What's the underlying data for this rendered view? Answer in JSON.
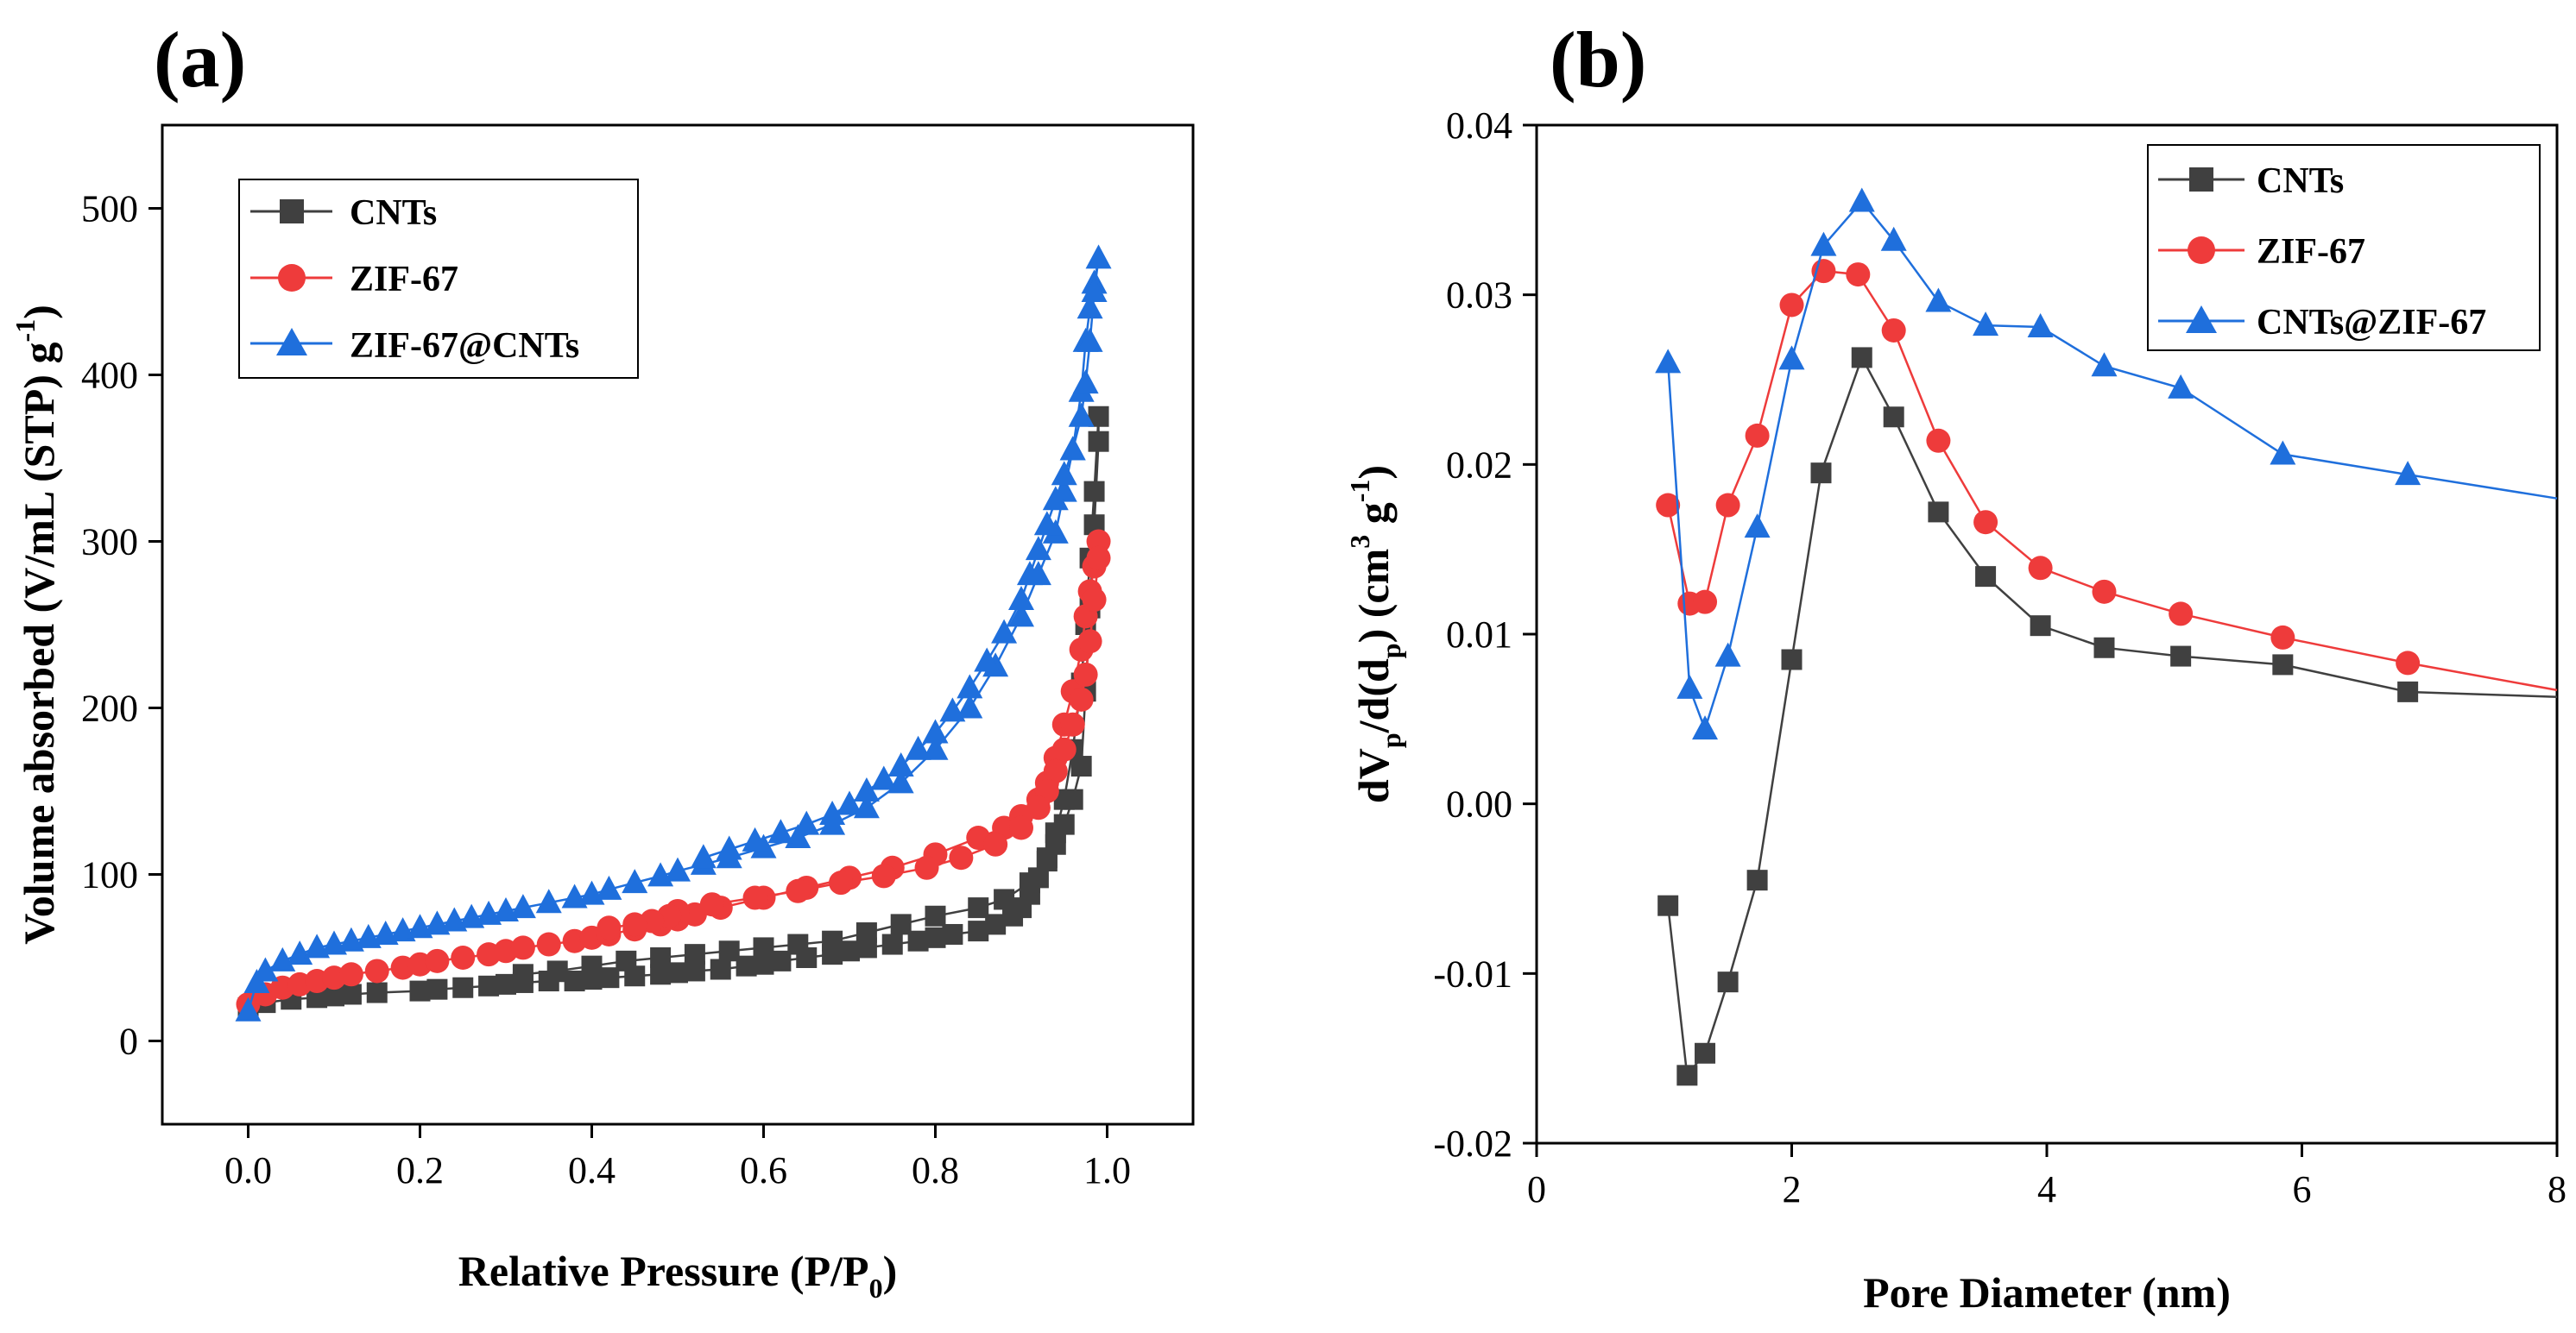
{
  "colors": {
    "cnts": "#404040",
    "zif67": "#ee3b3b",
    "blue": "#1f6fdc",
    "axis": "#000000"
  },
  "chart_data": [
    {
      "id": "a",
      "panel_label": "(a)",
      "type": "line",
      "title": "",
      "xlabel": "Relative Pressure (P/P0)",
      "xlabel_main": "Relative Pressure (P/P",
      "xlabel_sub": "0",
      "xlabel_end": ")",
      "ylabel": "Volume absorbed (V/mL (STP) g-1)",
      "ylabel_main": "Volume absorbed (V/mL (STP) g",
      "ylabel_sup": "-1",
      "ylabel_end": ")",
      "xlim": [
        -0.1,
        1.1
      ],
      "ylim": [
        -50,
        550
      ],
      "xticks": [
        0.0,
        0.2,
        0.4,
        0.6,
        0.8,
        1.0
      ],
      "xtick_labels": [
        "0.0",
        "0.2",
        "0.4",
        "0.6",
        "0.8",
        "1.0"
      ],
      "yticks": [
        0,
        100,
        200,
        300,
        400,
        500
      ],
      "ytick_labels": [
        "0",
        "100",
        "200",
        "300",
        "400",
        "500"
      ],
      "legend_position": "top-left",
      "series": [
        {
          "name": "CNTs",
          "color_key": "cnts",
          "marker": "square",
          "x": [
            0.0,
            0.02,
            0.05,
            0.08,
            0.1,
            0.12,
            0.15,
            0.2,
            0.22,
            0.25,
            0.28,
            0.3,
            0.32,
            0.35,
            0.38,
            0.4,
            0.42,
            0.45,
            0.48,
            0.5,
            0.52,
            0.55,
            0.58,
            0.6,
            0.62,
            0.65,
            0.68,
            0.7,
            0.72,
            0.75,
            0.78,
            0.8,
            0.82,
            0.85,
            0.87,
            0.89,
            0.9,
            0.91,
            0.92,
            0.93,
            0.94,
            0.95,
            0.96,
            0.97,
            0.975,
            0.98,
            0.985,
            0.99,
            0.99,
            0.985,
            0.98,
            0.975,
            0.97,
            0.96,
            0.95,
            0.94,
            0.93,
            0.91,
            0.88,
            0.85,
            0.8,
            0.76,
            0.72,
            0.68,
            0.64,
            0.6,
            0.56,
            0.52,
            0.48,
            0.44,
            0.4,
            0.36,
            0.32
          ],
          "y": [
            20,
            23,
            25,
            26,
            27,
            28,
            29,
            30,
            31,
            32,
            33,
            34,
            35,
            36,
            36,
            37,
            38,
            39,
            40,
            41,
            42,
            43,
            45,
            46,
            48,
            50,
            52,
            54,
            56,
            58,
            60,
            62,
            64,
            66,
            70,
            75,
            80,
            88,
            98,
            110,
            125,
            145,
            175,
            215,
            250,
            290,
            330,
            375,
            360,
            310,
            260,
            210,
            165,
            145,
            130,
            118,
            108,
            95,
            85,
            80,
            75,
            70,
            65,
            60,
            58,
            56,
            54,
            52,
            50,
            48,
            45,
            42,
            40
          ]
        },
        {
          "name": "ZIF-67",
          "color_key": "zif67",
          "marker": "circle",
          "x": [
            0.0,
            0.02,
            0.04,
            0.06,
            0.08,
            0.1,
            0.12,
            0.15,
            0.18,
            0.2,
            0.22,
            0.25,
            0.28,
            0.3,
            0.32,
            0.35,
            0.38,
            0.4,
            0.42,
            0.45,
            0.48,
            0.5,
            0.52,
            0.55,
            0.6,
            0.65,
            0.7,
            0.75,
            0.8,
            0.85,
            0.88,
            0.9,
            0.92,
            0.93,
            0.94,
            0.95,
            0.96,
            0.97,
            0.975,
            0.98,
            0.985,
            0.99,
            0.99,
            0.985,
            0.98,
            0.975,
            0.97,
            0.96,
            0.95,
            0.94,
            0.93,
            0.92,
            0.9,
            0.87,
            0.83,
            0.79,
            0.74,
            0.69,
            0.64,
            0.59,
            0.54,
            0.5,
            0.49,
            0.47,
            0.45,
            0.42
          ],
          "y": [
            22,
            28,
            32,
            34,
            36,
            38,
            40,
            42,
            44,
            46,
            48,
            50,
            52,
            54,
            56,
            58,
            60,
            62,
            64,
            67,
            70,
            73,
            76,
            80,
            86,
            92,
            98,
            104,
            112,
            122,
            128,
            135,
            145,
            155,
            170,
            190,
            210,
            235,
            255,
            270,
            285,
            300,
            290,
            265,
            240,
            220,
            205,
            190,
            175,
            162,
            150,
            140,
            128,
            118,
            110,
            104,
            99,
            95,
            90,
            86,
            82,
            78,
            75,
            72,
            70,
            68
          ]
        },
        {
          "name": "ZIF-67@CNTs",
          "color_key": "blue",
          "marker": "triangle",
          "x": [
            0.0,
            0.01,
            0.02,
            0.04,
            0.06,
            0.08,
            0.1,
            0.12,
            0.14,
            0.16,
            0.18,
            0.2,
            0.22,
            0.24,
            0.26,
            0.28,
            0.3,
            0.32,
            0.35,
            0.38,
            0.4,
            0.42,
            0.45,
            0.48,
            0.5,
            0.53,
            0.56,
            0.6,
            0.64,
            0.68,
            0.72,
            0.76,
            0.8,
            0.84,
            0.87,
            0.9,
            0.92,
            0.94,
            0.95,
            0.96,
            0.97,
            0.975,
            0.98,
            0.985,
            0.99,
            0.985,
            0.98,
            0.975,
            0.97,
            0.96,
            0.95,
            0.94,
            0.93,
            0.92,
            0.91,
            0.9,
            0.88,
            0.86,
            0.84,
            0.82,
            0.8,
            0.78,
            0.76,
            0.74,
            0.72,
            0.7,
            0.68,
            0.65,
            0.62,
            0.59,
            0.56,
            0.53
          ],
          "y": [
            18,
            35,
            42,
            48,
            52,
            56,
            58,
            60,
            62,
            64,
            66,
            68,
            70,
            72,
            74,
            76,
            78,
            80,
            83,
            86,
            88,
            91,
            95,
            99,
            102,
            106,
            110,
            116,
            122,
            130,
            140,
            155,
            175,
            200,
            225,
            255,
            280,
            305,
            330,
            355,
            390,
            420,
            440,
            455,
            470,
            450,
            420,
            395,
            375,
            355,
            340,
            325,
            310,
            295,
            280,
            265,
            245,
            228,
            212,
            198,
            185,
            175,
            165,
            157,
            150,
            142,
            136,
            130,
            125,
            120,
            115,
            110
          ]
        }
      ]
    },
    {
      "id": "b",
      "panel_label": "(b)",
      "type": "line",
      "title": "",
      "xlabel": "Pore Diameter (nm)",
      "ylabel": "dVp/d(dp) (cm3 g-1)",
      "ylabel_parts": {
        "a": "dV",
        "b": "p",
        "c": "/d(d",
        "d": "p",
        "e": ") (cm",
        "f": "3",
        "g": " g",
        "h": "-1",
        "i": ")"
      },
      "xlim": [
        0,
        8
      ],
      "ylim": [
        -0.02,
        0.04
      ],
      "xticks": [
        0,
        2,
        4,
        6,
        8
      ],
      "xtick_labels": [
        "0",
        "2",
        "4",
        "6",
        "8"
      ],
      "yticks": [
        -0.02,
        -0.01,
        0.0,
        0.01,
        0.02,
        0.03,
        0.04
      ],
      "ytick_labels": [
        "-0.02",
        "-0.01",
        "0.00",
        "0.01",
        "0.02",
        "0.03",
        "0.04"
      ],
      "legend_position": "top-right",
      "series": [
        {
          "name": "CNTs",
          "color_key": "cnts",
          "marker": "square",
          "x": [
            1.03,
            1.18,
            1.32,
            1.5,
            1.73,
            2.0,
            2.23,
            2.55,
            2.8,
            3.15,
            3.52,
            3.95,
            4.45,
            5.05,
            5.85,
            6.83,
            8.0
          ],
          "y": [
            -0.006,
            -0.016,
            -0.0147,
            -0.0105,
            -0.0045,
            0.0085,
            0.0195,
            0.0263,
            0.0228,
            0.0172,
            0.0134,
            0.0105,
            0.0092,
            0.0087,
            0.0082,
            0.0066,
            0.0063
          ],
          "markers_count": 16
        },
        {
          "name": "ZIF-67",
          "color_key": "zif67",
          "marker": "circle",
          "x": [
            1.03,
            1.2,
            1.32,
            1.5,
            1.73,
            2.0,
            2.25,
            2.52,
            2.8,
            3.15,
            3.52,
            3.95,
            4.45,
            5.05,
            5.85,
            6.83,
            8.0
          ],
          "y": [
            0.0176,
            0.0118,
            0.0119,
            0.0176,
            0.0217,
            0.0294,
            0.0314,
            0.0312,
            0.0279,
            0.0214,
            0.0166,
            0.0139,
            0.0125,
            0.0112,
            0.0098,
            0.0083,
            0.0067
          ],
          "markers_count": 16
        },
        {
          "name": "CNTs@ZIF-67",
          "color_key": "blue",
          "marker": "triangle",
          "x": [
            1.03,
            1.2,
            1.32,
            1.5,
            1.73,
            2.0,
            2.25,
            2.55,
            2.8,
            3.15,
            3.52,
            3.95,
            4.45,
            5.05,
            5.85,
            6.83,
            8.0
          ],
          "y": [
            0.026,
            0.0068,
            0.0044,
            0.0087,
            0.0163,
            0.0262,
            0.0329,
            0.0355,
            0.0332,
            0.0296,
            0.0282,
            0.0281,
            0.0258,
            0.0245,
            0.0206,
            0.0194,
            0.018
          ],
          "markers_count": 16
        }
      ]
    }
  ]
}
